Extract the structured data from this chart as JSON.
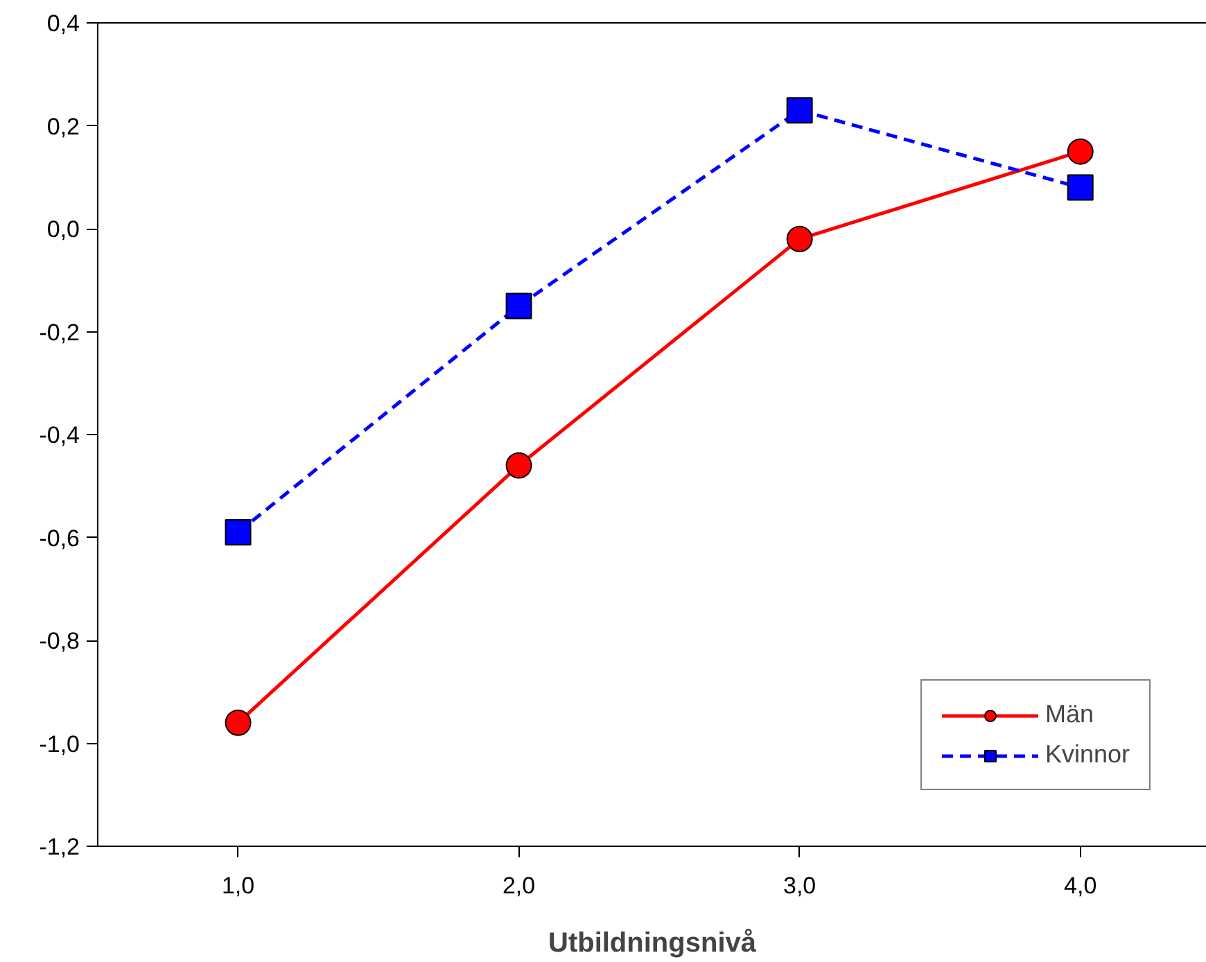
{
  "chart_data": {
    "type": "line",
    "xlabel": "Utbildningsnivå",
    "x": [
      1,
      2,
      3,
      4
    ],
    "series": [
      {
        "name": "Män",
        "color": "#ff0000",
        "values": [
          -0.96,
          -0.46,
          -0.02,
          0.15
        ],
        "marker": "circle",
        "line_style": "solid"
      },
      {
        "name": "Kvinnor",
        "color": "#0000ff",
        "values": [
          -0.59,
          -0.15,
          0.23,
          0.08
        ],
        "marker": "square",
        "line_style": "dashed"
      }
    ],
    "xlim": [
      0.5,
      4.45
    ],
    "ylim": [
      -1.2,
      0.4
    ],
    "xticks": [
      {
        "value": 1,
        "label": "1,0"
      },
      {
        "value": 2,
        "label": "2,0"
      },
      {
        "value": 3,
        "label": "3,0"
      },
      {
        "value": 4,
        "label": "4,0"
      }
    ],
    "yticks": [
      {
        "value": -1.2,
        "label": "-1,2"
      },
      {
        "value": -1.0,
        "label": "-1,0"
      },
      {
        "value": -0.8,
        "label": "-0,8"
      },
      {
        "value": -0.6,
        "label": "-0,6"
      },
      {
        "value": -0.4,
        "label": "-0,4"
      },
      {
        "value": -0.2,
        "label": "-0,2"
      },
      {
        "value": 0.0,
        "label": "0,0"
      },
      {
        "value": 0.2,
        "label": "0,2"
      },
      {
        "value": 0.4,
        "label": "0,4"
      }
    ],
    "grid": false,
    "legend": "bottom right"
  }
}
